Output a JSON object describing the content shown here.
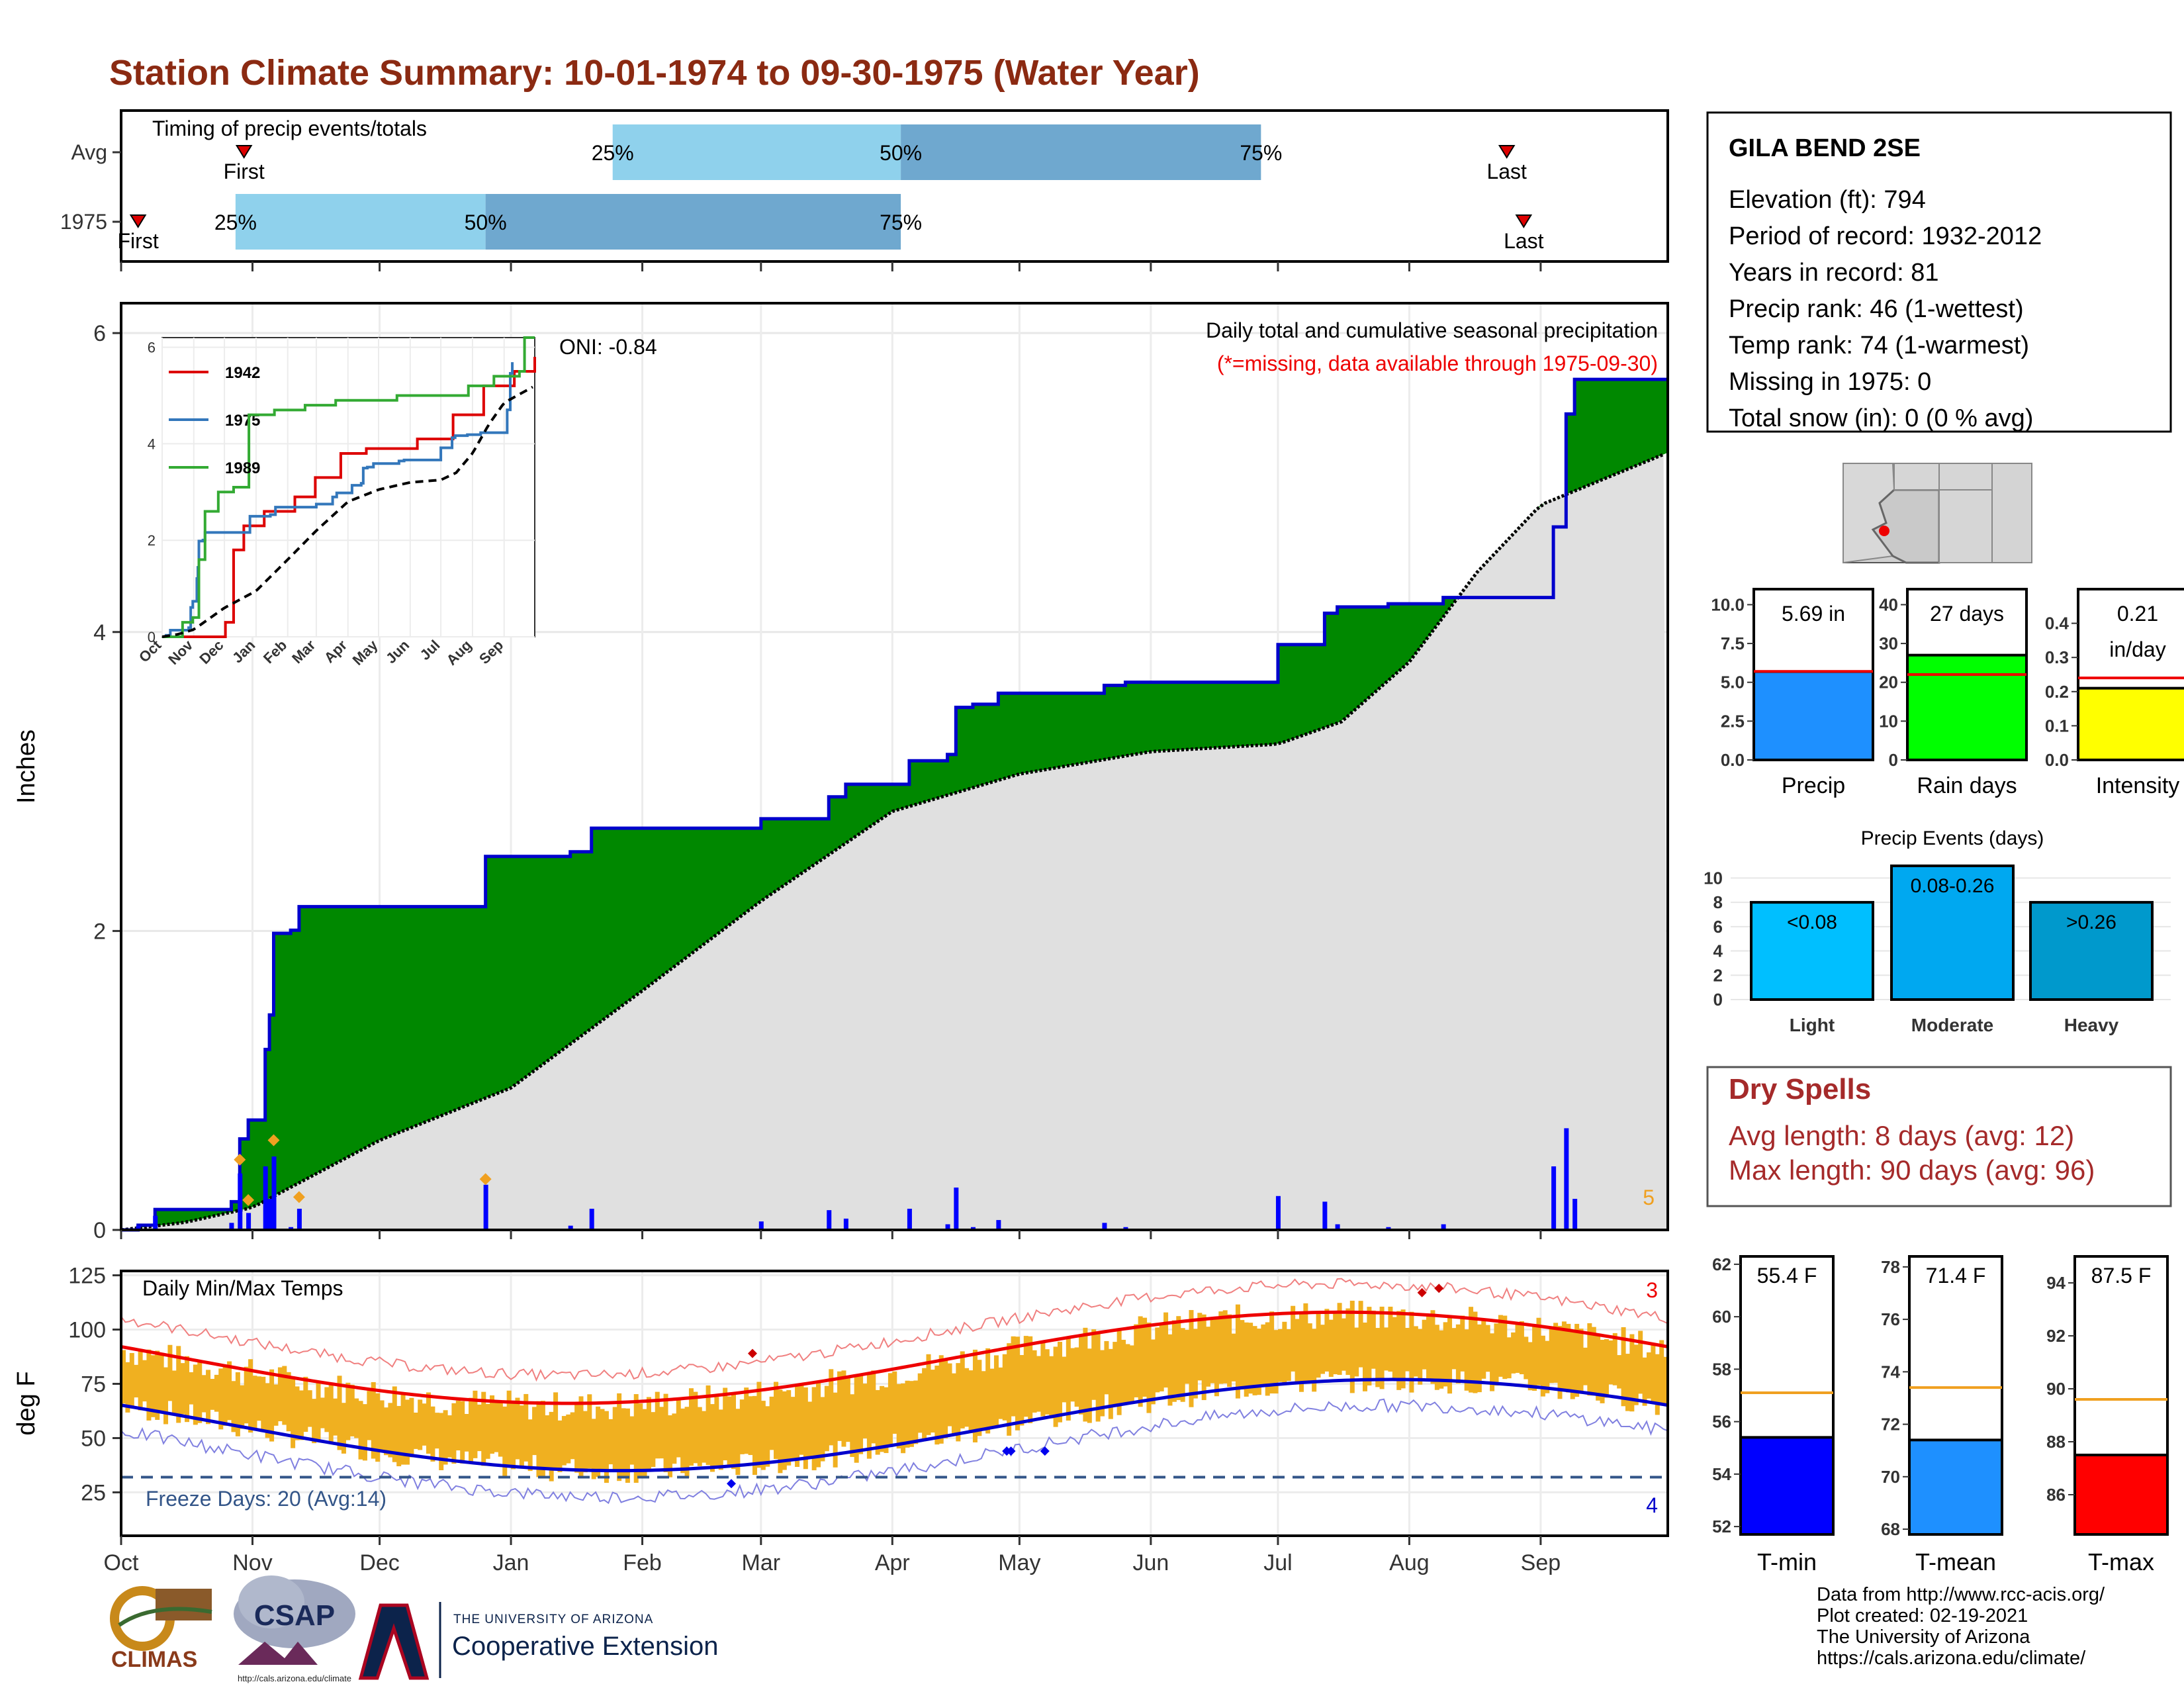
{
  "title": "Station Climate Summary: 10-01-1974 to 09-30-1975 (Water Year)",
  "timing": {
    "label": "Timing of precip events/totals",
    "rows": [
      {
        "name": "Avg",
        "first_day": 29,
        "p25": 116,
        "p50": 184,
        "p75": 269,
        "last_day": 327
      },
      {
        "name": "1975",
        "first_day": 4,
        "p25": 27,
        "p50": 86,
        "p75": 184,
        "last_day": 331
      }
    ],
    "first_label": "First",
    "last_label": "Last",
    "p25_label": "25%",
    "p50_label": "50%",
    "p75_label": "75%",
    "colors": {
      "light": "#8fd1ec",
      "dark": "#6fa8cf",
      "marker": "#dd0000"
    }
  },
  "months": [
    "Oct",
    "Nov",
    "Dec",
    "Jan",
    "Feb",
    "Mar",
    "Apr",
    "May",
    "Jun",
    "Jul",
    "Aug",
    "Sep"
  ],
  "month_start_days": [
    0,
    31,
    61,
    92,
    123,
    151,
    182,
    212,
    243,
    273,
    304,
    335
  ],
  "precip_panel": {
    "ylabel": "Inches",
    "ylim": [
      0,
      6.2
    ],
    "yticks": [
      0,
      2,
      4,
      6
    ],
    "subtitle": "Daily total and cumulative seasonal precipitation",
    "missing_note": "(*=missing, data available through 1975-09-30)",
    "oni": "ONI: -0.84",
    "count_label": "5",
    "colors": {
      "cumulative": "#0000cc",
      "above": "#008800",
      "normal": "#e0e0e0",
      "daily": "#0000ff",
      "record": "#f0a020"
    }
  },
  "inset": {
    "yticks": [
      "0",
      "2",
      "4",
      "6"
    ],
    "months": [
      "Oct",
      "Nov",
      "Dec",
      "Jan",
      "Feb",
      "Mar",
      "Apr",
      "May",
      "Jun",
      "Jul",
      "Aug",
      "Sep"
    ],
    "legend": [
      {
        "name": "1942",
        "color": "#dd0000"
      },
      {
        "name": "1975",
        "color": "#3377bb"
      },
      {
        "name": "1989",
        "color": "#33aa33"
      }
    ]
  },
  "temp_panel": {
    "ylabel": "deg F",
    "label": "Daily Min/Max Temps",
    "yticks": [
      25,
      50,
      75,
      100,
      125
    ],
    "ylim": [
      5,
      127
    ],
    "freeze_days": "Freeze Days: 20 (Avg:14)",
    "count_max": "3",
    "count_min": "4",
    "colors": {
      "bar": "#f0b020",
      "max_avg": "#ee0000",
      "min_avg": "#0000cc",
      "rec_max": "#f08080",
      "rec_min": "#8080e0",
      "freeze": "#335588"
    }
  },
  "station": {
    "name": "GILA BEND 2SE",
    "lines": [
      "Elevation (ft): 794",
      "Period of record: 1932-2012",
      "Years in record: 81",
      "Precip rank: 46 (1-wettest)",
      "Temp rank: 74 (1-warmest)",
      "Missing in 1975: 0",
      "Total snow (in): 0 (0 % avg)"
    ]
  },
  "precip_bars": [
    {
      "name": "Precip",
      "value_label": "5.69 in",
      "value": 5.69,
      "avg": 5.7,
      "ylim": [
        0,
        11
      ],
      "yticks": [
        "0.0",
        "2.5",
        "5.0",
        "7.5",
        "10.0"
      ],
      "tick_vals": [
        0,
        2.5,
        5,
        7.5,
        10
      ],
      "color": "#1e90ff"
    },
    {
      "name": "Rain days",
      "value_label": "27 days",
      "value": 27,
      "avg": 22,
      "ylim": [
        0,
        44
      ],
      "yticks": [
        "0",
        "10",
        "20",
        "30",
        "40"
      ],
      "tick_vals": [
        0,
        10,
        20,
        30,
        40
      ],
      "color": "#00ff00"
    },
    {
      "name": "Intensity",
      "value_label": "0.21",
      "value_label2": "in/day",
      "value": 0.21,
      "avg": 0.24,
      "ylim": [
        0,
        0.5
      ],
      "yticks": [
        "0.0",
        "0.1",
        "0.2",
        "0.3",
        "0.4"
      ],
      "tick_vals": [
        0,
        0.1,
        0.2,
        0.3,
        0.4
      ],
      "color": "#ffff00"
    }
  ],
  "precip_events": {
    "title": "Precip Events (days)",
    "categories": [
      "Light",
      "Moderate",
      "Heavy"
    ],
    "ranges": [
      "<0.08",
      "0.08-0.26",
      ">0.26"
    ],
    "values": [
      8,
      11,
      8
    ],
    "yticks": [
      0,
      2,
      4,
      6,
      8,
      10
    ],
    "ylim": [
      0,
      11
    ],
    "colors": [
      "#00bfff",
      "#00a8f0",
      "#0099cc"
    ]
  },
  "dry_spells": {
    "title": "Dry Spells",
    "avg_length": "Avg length: 8 days (avg: 12)",
    "max_length": "Max length: 90 days (avg: 96)"
  },
  "temp_bars": [
    {
      "name": "T-min",
      "value_label": "55.4 F",
      "value": 55.4,
      "avg": 57.1,
      "ylim": [
        51.7,
        62.3
      ],
      "yticks": [
        52,
        54,
        56,
        58,
        60,
        62
      ],
      "color": "#0000ff"
    },
    {
      "name": "T-mean",
      "value_label": "71.4 F",
      "value": 71.4,
      "avg": 73.4,
      "ylim": [
        67.8,
        78.4
      ],
      "yticks": [
        68,
        70,
        72,
        74,
        76,
        78
      ],
      "color": "#1e90ff"
    },
    {
      "name": "T-max",
      "value_label": "87.5 F",
      "value": 87.5,
      "avg": 89.6,
      "ylim": [
        84.5,
        95
      ],
      "yticks": [
        86,
        88,
        90,
        92,
        94
      ],
      "color": "#ff0000"
    }
  ],
  "footer": {
    "lines": [
      "Data from http://www.rcc-acis.org/",
      "Plot created: 02-19-2021",
      "The University of Arizona",
      "https://cals.arizona.edu/climate/"
    ],
    "logos": {
      "climas": "CLIMAS",
      "csap": "CSAP",
      "csap_url": "http://cals.arizona.edu/climate",
      "ua_line1": "THE UNIVERSITY OF ARIZONA",
      "ua_line2": "Cooperative Extension"
    }
  }
}
